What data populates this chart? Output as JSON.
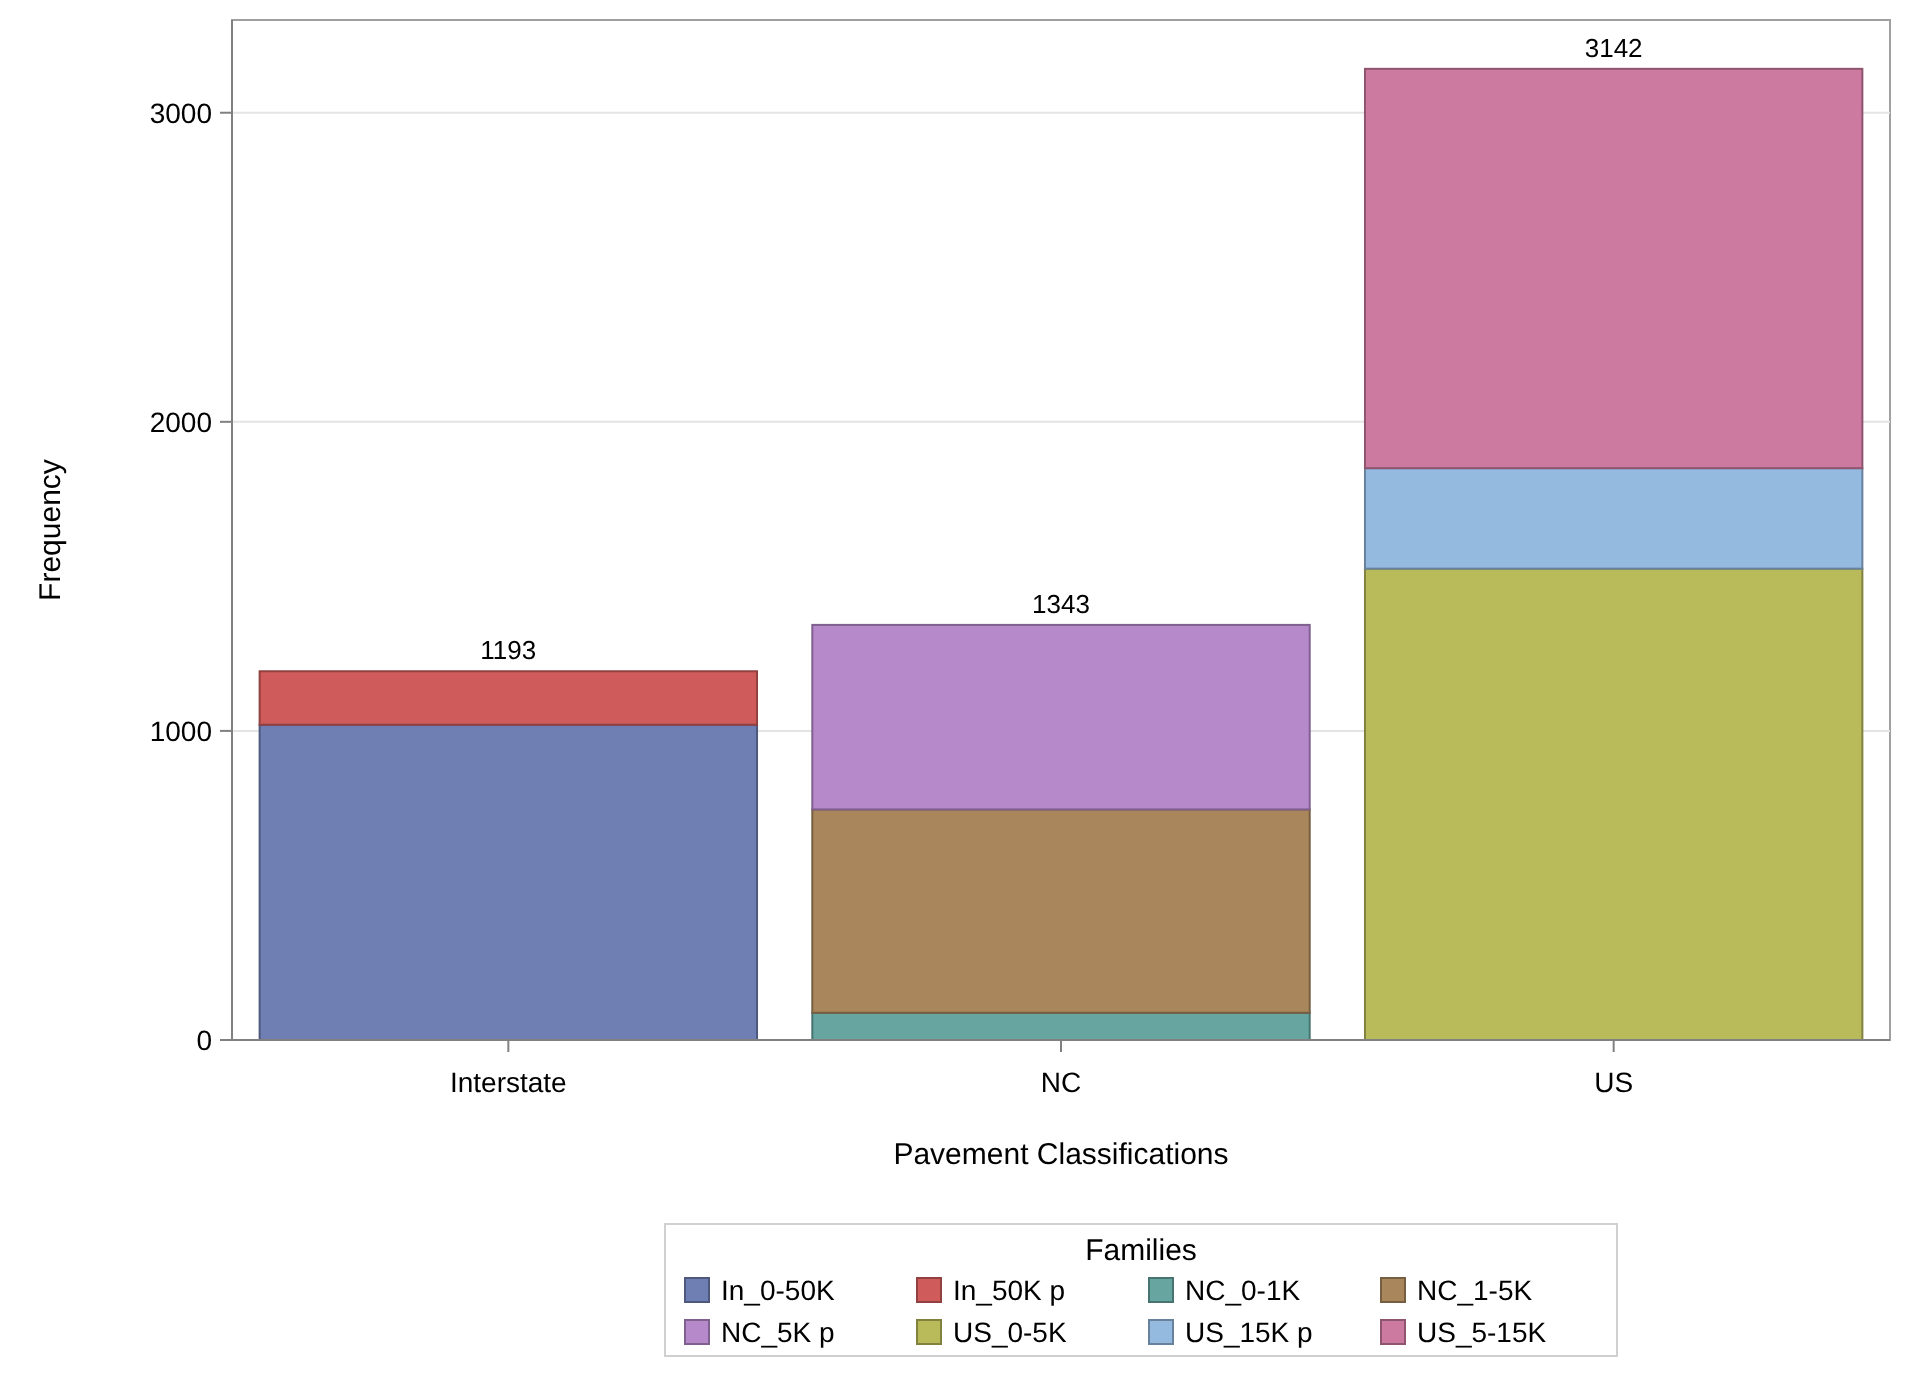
{
  "chart_data": {
    "type": "bar",
    "stacked": true,
    "xlabel": "Pavement Classifications",
    "ylabel": "Frequency",
    "legend_title": "Families",
    "legend": "bottom",
    "grid": "y",
    "categories": [
      "Interstate",
      "NC",
      "US"
    ],
    "series": [
      {
        "name": "In_0-50K",
        "color": "#6f7eb3",
        "values": [
          1020,
          null,
          null
        ]
      },
      {
        "name": "In_50K p",
        "color": "#d05b5b",
        "values": [
          173,
          null,
          null
        ]
      },
      {
        "name": "NC_0-1K",
        "color": "#66a5a0",
        "values": [
          null,
          88,
          null
        ]
      },
      {
        "name": "NC_1-5K",
        "color": "#a9865b",
        "values": [
          null,
          658,
          null
        ]
      },
      {
        "name": "NC_5K p",
        "color": "#b689cb",
        "values": [
          null,
          597,
          null
        ]
      },
      {
        "name": "US_0-5K",
        "color": "#b9ba5a",
        "values": [
          null,
          null,
          1525
        ]
      },
      {
        "name": "US_15K p",
        "color": "#94bae0",
        "values": [
          null,
          null,
          325
        ]
      },
      {
        "name": "US_5-15K",
        "color": "#cc7a9f",
        "values": [
          null,
          null,
          1292
        ]
      }
    ],
    "totals": [
      "1193",
      "1343",
      "3142"
    ],
    "ylim": [
      0,
      3300
    ],
    "yticks": [
      0,
      1000,
      2000,
      3000
    ]
  }
}
